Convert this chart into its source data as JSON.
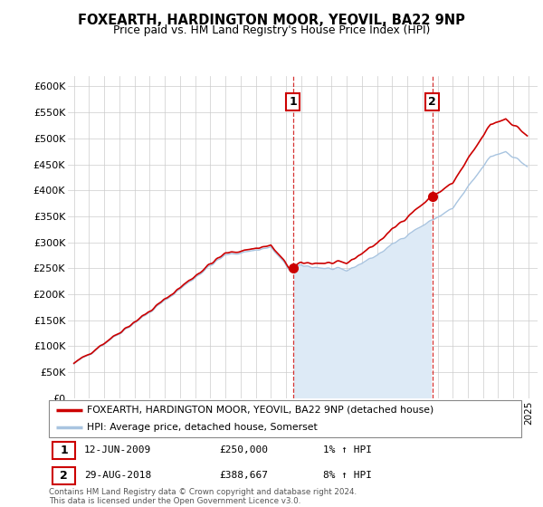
{
  "title": "FOXEARTH, HARDINGTON MOOR, YEOVIL, BA22 9NP",
  "subtitle": "Price paid vs. HM Land Registry's House Price Index (HPI)",
  "legend_label_red": "FOXEARTH, HARDINGTON MOOR, YEOVIL, BA22 9NP (detached house)",
  "legend_label_blue": "HPI: Average price, detached house, Somerset",
  "annotation1_date": "12-JUN-2009",
  "annotation1_price": 250000,
  "annotation1_hpi": "1% ↑ HPI",
  "annotation1_year": 2009.45,
  "annotation2_date": "29-AUG-2018",
  "annotation2_price": 388667,
  "annotation2_hpi": "8% ↑ HPI",
  "annotation2_year": 2018.65,
  "footer": "Contains HM Land Registry data © Crown copyright and database right 2024.\nThis data is licensed under the Open Government Licence v3.0.",
  "ylim": [
    0,
    620000
  ],
  "yticks": [
    0,
    50000,
    100000,
    150000,
    200000,
    250000,
    300000,
    350000,
    400000,
    450000,
    500000,
    550000,
    600000
  ],
  "hpi_color": "#a8c4e0",
  "hpi_fill_color": "#ddeaf6",
  "price_color": "#cc0000",
  "vline_color": "#cc0000",
  "background_color": "#ffffff",
  "grid_color": "#cccccc"
}
